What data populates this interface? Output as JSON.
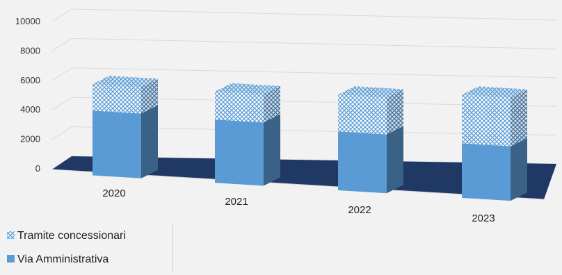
{
  "chart_data": {
    "type": "bar",
    "stacked": true,
    "three_d": true,
    "categories": [
      "2020",
      "2021",
      "2022",
      "2023"
    ],
    "series": [
      {
        "name": "Via Amministrativa",
        "values": [
          4400,
          4300,
          4000,
          3700
        ],
        "color": "#5b9bd5",
        "pattern": "solid"
      },
      {
        "name": "Tramite concessionari",
        "values": [
          1800,
          1900,
          2500,
          3300
        ],
        "color": "#5b9bd5",
        "pattern": "crosshatch"
      }
    ],
    "ylim": [
      0,
      10000
    ],
    "yticks": [
      "0",
      "2000",
      "4000",
      "6000",
      "8000",
      "10000"
    ],
    "grid": true,
    "legend_position": "bottom-left",
    "title": "",
    "xlabel": "",
    "ylabel": ""
  }
}
